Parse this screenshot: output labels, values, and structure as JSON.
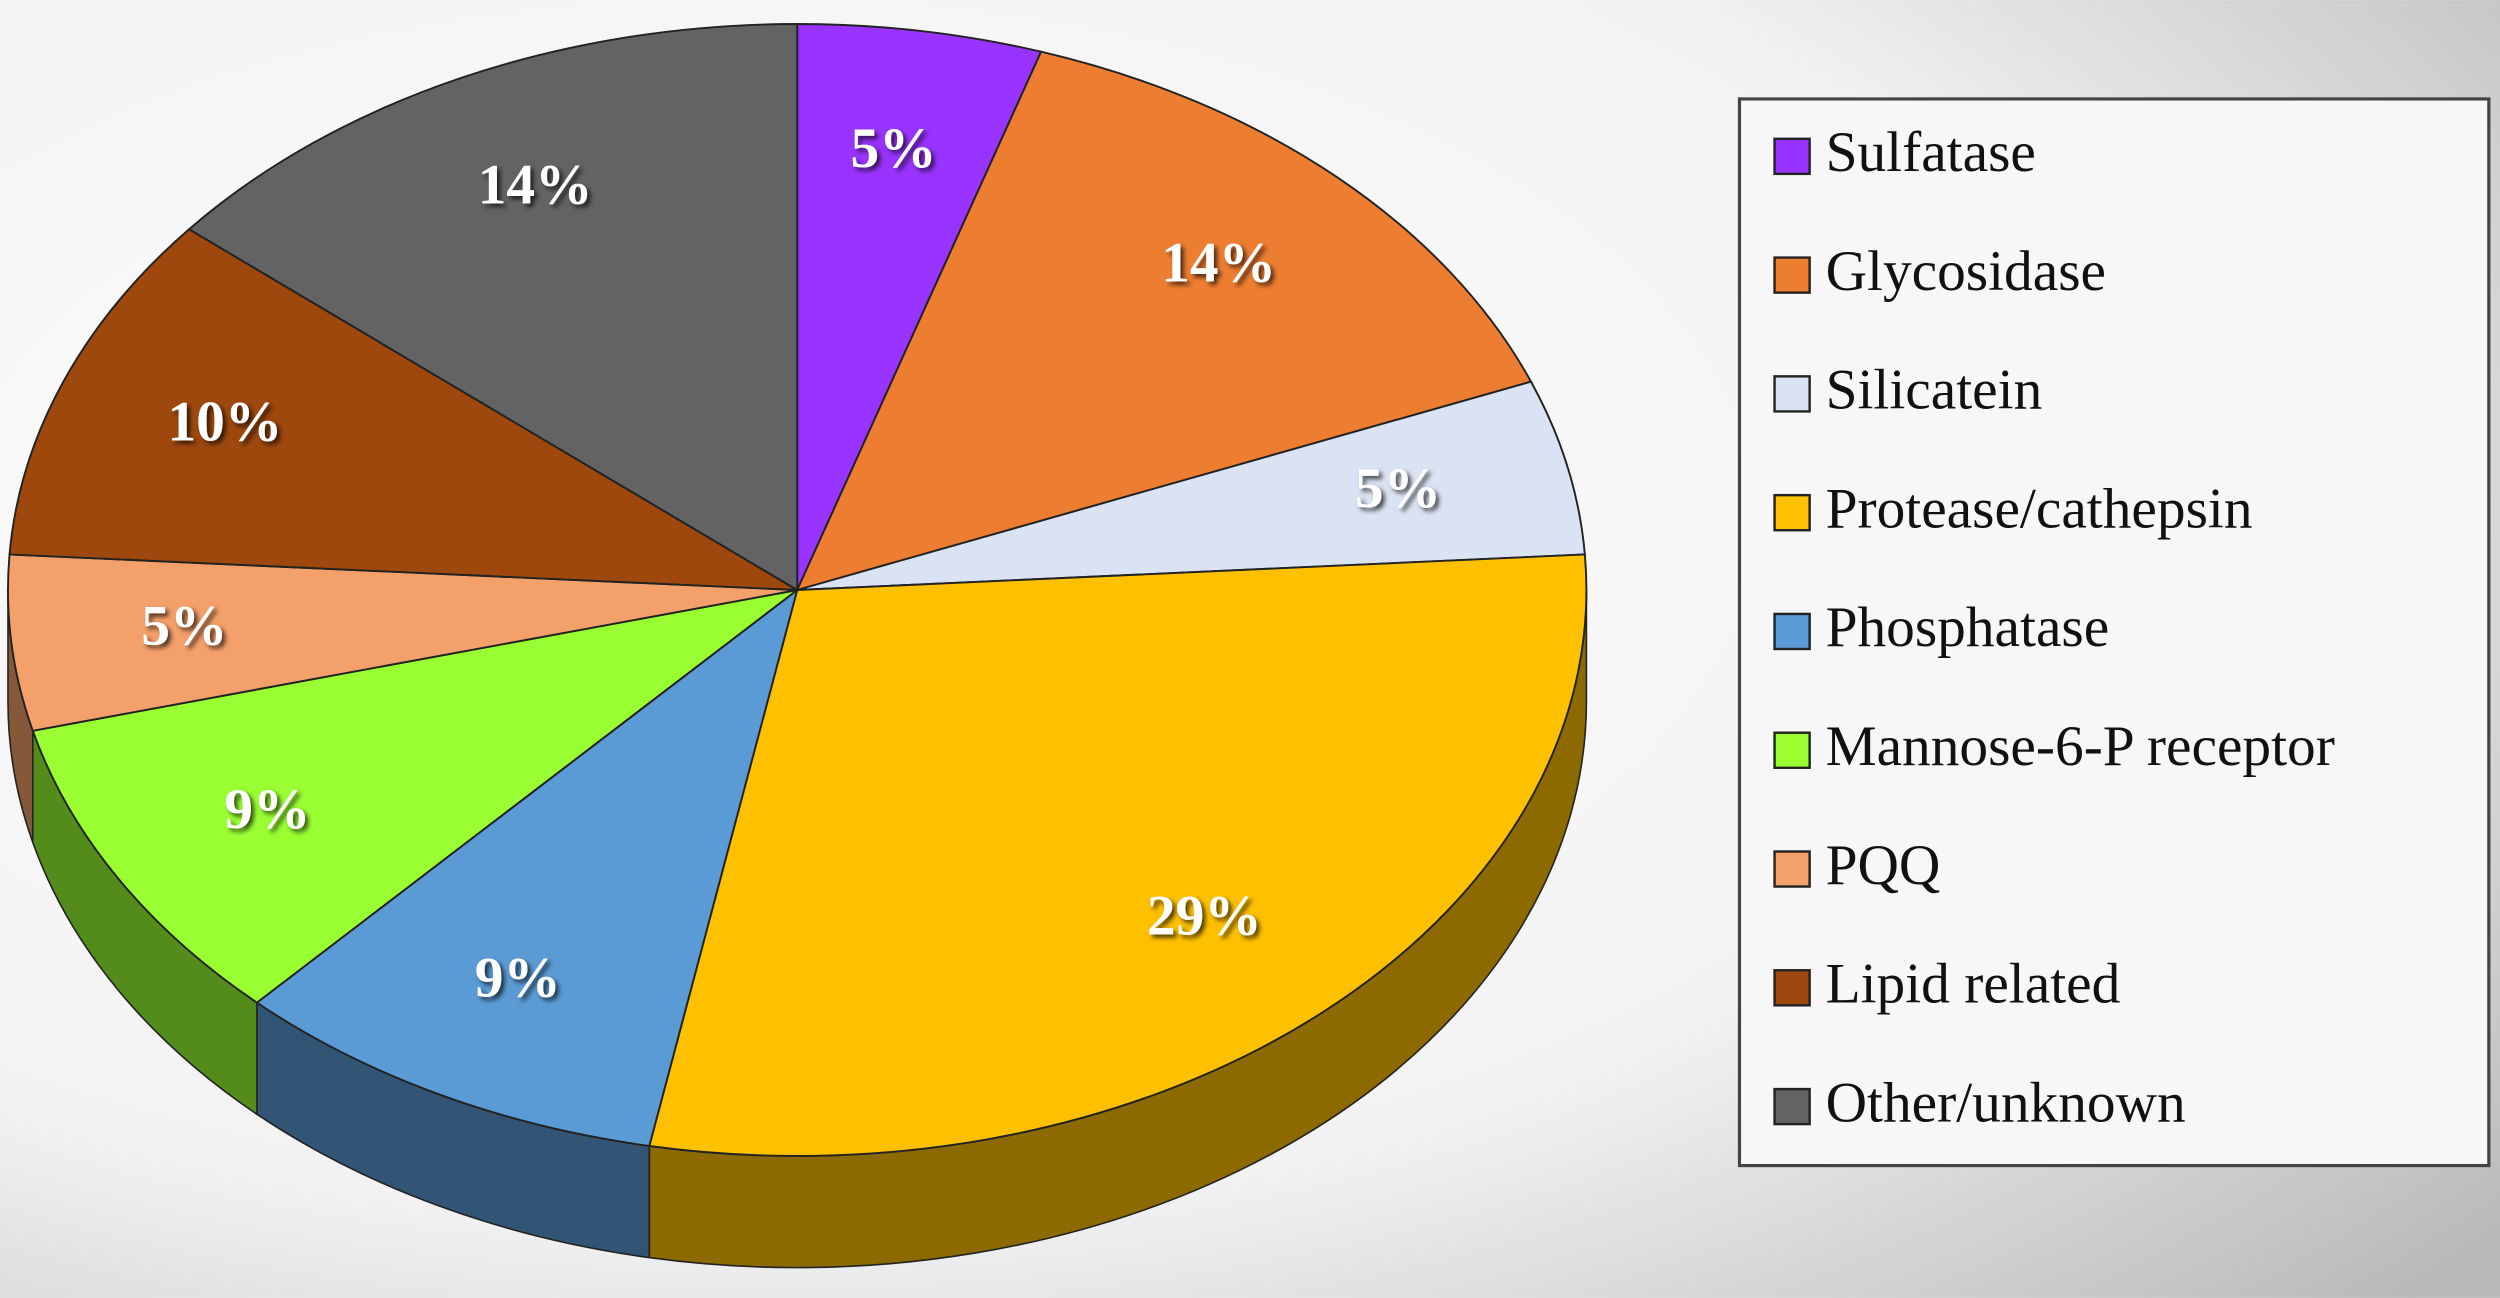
{
  "chart_data": {
    "type": "pie",
    "categories": [
      "Sulfatase",
      "Glycosidase",
      "Silicatein",
      "Protease/cathepsin",
      "Phosphatase",
      "Mannose-6-P receptor",
      "PQQ",
      "Lipid related",
      "Other/unknown"
    ],
    "values": [
      5,
      14,
      5,
      29,
      9,
      9,
      5,
      10,
      14
    ],
    "value_labels": [
      "5%",
      "14%",
      "5%",
      "29%",
      "9%",
      "9%",
      "5%",
      "10%",
      "14%"
    ],
    "colors": [
      "#9933ff",
      "#ed7d31",
      "#dae3f3",
      "#ffc000",
      "#5b9bd5",
      "#99ff33",
      "#f4a06a",
      "#9e480e",
      "#636363"
    ],
    "legend": "right"
  }
}
